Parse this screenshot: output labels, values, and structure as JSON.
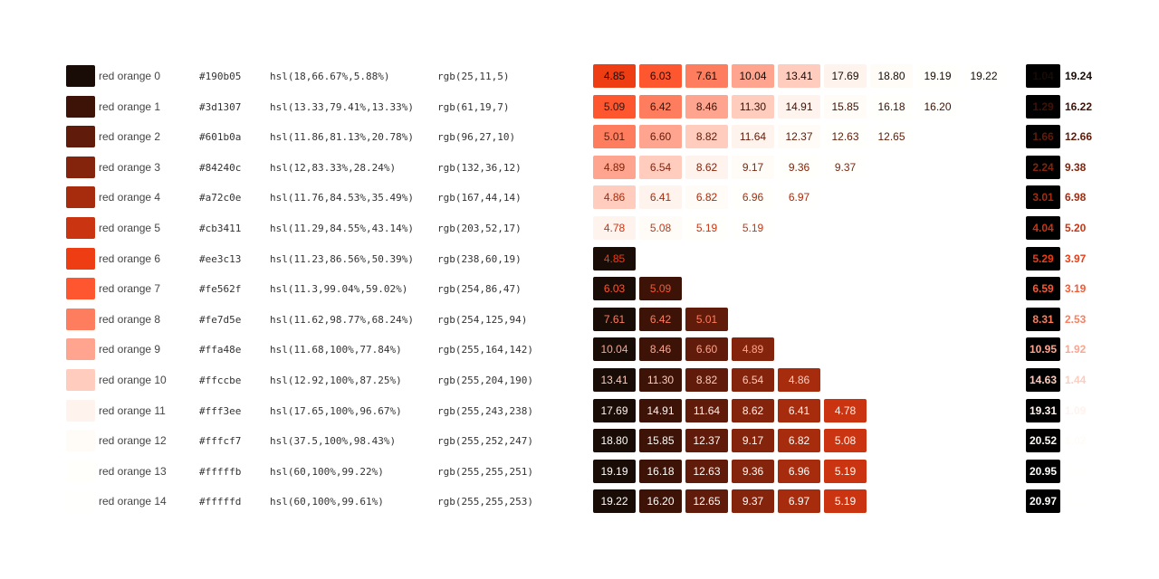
{
  "palette": [
    {
      "name": "red orange 0",
      "hex": "#190b05",
      "hsl": "hsl(18,66.67%,5.88%)",
      "rgb": "rgb(25,11,5)",
      "contrast_upper": [
        "4.85",
        "6.03",
        "7.61",
        "10.04",
        "13.41",
        "17.69",
        "18.80",
        "19.19",
        "19.22"
      ],
      "contrast_lower": [],
      "contrast_black": "1.04",
      "contrast_white": "19.24"
    },
    {
      "name": "red orange 1",
      "hex": "#3d1307",
      "hsl": "hsl(13.33,79.41%,13.33%)",
      "rgb": "rgb(61,19,7)",
      "contrast_upper": [
        "5.09",
        "6.42",
        "8.46",
        "11.30",
        "14.91",
        "15.85",
        "16.18",
        "16.20"
      ],
      "contrast_lower": [],
      "contrast_black": "1.29",
      "contrast_white": "16.22"
    },
    {
      "name": "red orange 2",
      "hex": "#601b0a",
      "hsl": "hsl(11.86,81.13%,20.78%)",
      "rgb": "rgb(96,27,10)",
      "contrast_upper": [
        "5.01",
        "6.60",
        "8.82",
        "11.64",
        "12.37",
        "12.63",
        "12.65"
      ],
      "contrast_lower": [],
      "contrast_black": "1.66",
      "contrast_white": "12.66"
    },
    {
      "name": "red orange 3",
      "hex": "#84240c",
      "hsl": "hsl(12,83.33%,28.24%)",
      "rgb": "rgb(132,36,12)",
      "contrast_upper": [
        "4.89",
        "6.54",
        "8.62",
        "9.17",
        "9.36",
        "9.37"
      ],
      "contrast_lower": [],
      "contrast_black": "2.24",
      "contrast_white": "9.38"
    },
    {
      "name": "red orange 4",
      "hex": "#a72c0e",
      "hsl": "hsl(11.76,84.53%,35.49%)",
      "rgb": "rgb(167,44,14)",
      "contrast_upper": [
        "4.86",
        "6.41",
        "6.82",
        "6.96",
        "6.97"
      ],
      "contrast_lower": [],
      "contrast_black": "3.01",
      "contrast_white": "6.98"
    },
    {
      "name": "red orange 5",
      "hex": "#cb3411",
      "hsl": "hsl(11.29,84.55%,43.14%)",
      "rgb": "rgb(203,52,17)",
      "contrast_upper": [
        "4.78",
        "5.08",
        "5.19",
        "5.19"
      ],
      "contrast_lower": [],
      "contrast_black": "4.04",
      "contrast_white": "5.20"
    },
    {
      "name": "red orange 6",
      "hex": "#ee3c13",
      "hsl": "hsl(11.23,86.56%,50.39%)",
      "rgb": "rgb(238,60,19)",
      "contrast_upper": [],
      "contrast_lower": [
        "4.85"
      ],
      "contrast_black": "5.29",
      "contrast_white": "3.97"
    },
    {
      "name": "red orange 7",
      "hex": "#fe562f",
      "hsl": "hsl(11.3,99.04%,59.02%)",
      "rgb": "rgb(254,86,47)",
      "contrast_upper": [],
      "contrast_lower": [
        "6.03",
        "5.09"
      ],
      "contrast_black": "6.59",
      "contrast_white": "3.19"
    },
    {
      "name": "red orange 8",
      "hex": "#fe7d5e",
      "hsl": "hsl(11.62,98.77%,68.24%)",
      "rgb": "rgb(254,125,94)",
      "contrast_upper": [],
      "contrast_lower": [
        "7.61",
        "6.42",
        "5.01"
      ],
      "contrast_black": "8.31",
      "contrast_white": "2.53"
    },
    {
      "name": "red orange 9",
      "hex": "#ffa48e",
      "hsl": "hsl(11.68,100%,77.84%)",
      "rgb": "rgb(255,164,142)",
      "contrast_upper": [],
      "contrast_lower": [
        "10.04",
        "8.46",
        "6.60",
        "4.89"
      ],
      "contrast_black": "10.95",
      "contrast_white": "1.92"
    },
    {
      "name": "red orange 10",
      "hex": "#ffccbe",
      "hsl": "hsl(12.92,100%,87.25%)",
      "rgb": "rgb(255,204,190)",
      "contrast_upper": [],
      "contrast_lower": [
        "13.41",
        "11.30",
        "8.82",
        "6.54",
        "4.86"
      ],
      "contrast_black": "14.63",
      "contrast_white": "1.44"
    },
    {
      "name": "red orange 11",
      "hex": "#fff3ee",
      "hsl": "hsl(17.65,100%,96.67%)",
      "rgb": "rgb(255,243,238)",
      "contrast_upper": [],
      "contrast_lower": [
        "17.69",
        "14.91",
        "11.64",
        "8.62",
        "6.41",
        "4.78"
      ],
      "contrast_black": "19.31",
      "contrast_white": "1.09"
    },
    {
      "name": "red orange 12",
      "hex": "#fffcf7",
      "hsl": "hsl(37.5,100%,98.43%)",
      "rgb": "rgb(255,252,247)",
      "contrast_upper": [],
      "contrast_lower": [
        "18.80",
        "15.85",
        "12.37",
        "9.17",
        "6.82",
        "5.08"
      ],
      "contrast_black": "20.52",
      "contrast_white": "1.02"
    },
    {
      "name": "red orange 13",
      "hex": "#fffffb",
      "hsl": "hsl(60,100%,99.22%)",
      "rgb": "rgb(255,255,251)",
      "contrast_upper": [],
      "contrast_lower": [
        "19.19",
        "16.18",
        "12.63",
        "9.36",
        "6.96",
        "5.19"
      ],
      "contrast_black": "20.95",
      "contrast_white": "1.00"
    },
    {
      "name": "red orange 14",
      "hex": "#fffffd",
      "hsl": "hsl(60,100%,99.61%)",
      "rgb": "rgb(255,255,253)",
      "contrast_upper": [],
      "contrast_lower": [
        "19.22",
        "16.20",
        "12.65",
        "9.37",
        "6.97",
        "5.19"
      ],
      "contrast_black": "20.97",
      "contrast_white": "1.00"
    }
  ]
}
